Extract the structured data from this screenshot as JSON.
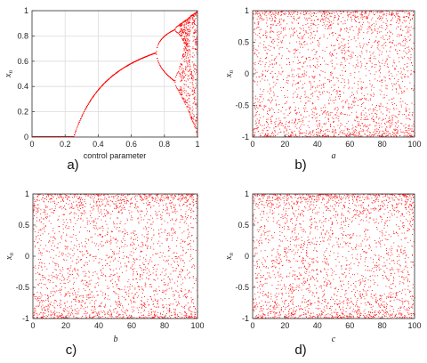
{
  "colors": {
    "points": "#ff0000",
    "axis": "#444444",
    "grid": "#dcdcdc"
  },
  "chart_data": [
    {
      "type": "scatter",
      "panel": "a)",
      "xlabel": "control parameter",
      "ylabel": "x_n",
      "xlim": [
        0,
        1
      ],
      "ylim": [
        0,
        1
      ],
      "xticks": [
        0,
        0.2,
        0.4,
        0.6,
        0.8,
        1
      ],
      "yticks": [
        0,
        0.2,
        0.4,
        0.6,
        0.8,
        1
      ],
      "tick_labels_x": [
        "0",
        "0.2",
        "0.4",
        "0.6",
        "0.8",
        "1"
      ],
      "tick_labels_y": [
        "0",
        "0.2",
        "0.4",
        "0.6",
        "0.8",
        "1"
      ],
      "grid": true,
      "description_points": "bifurcation diagram"
    },
    {
      "type": "scatter",
      "panel": "b)",
      "xlabel": "a",
      "ylabel": "x_n",
      "xlim": [
        0,
        100
      ],
      "ylim": [
        -1,
        1
      ],
      "xticks": [
        0,
        20,
        40,
        60,
        80,
        100
      ],
      "yticks": [
        -1,
        -0.5,
        0,
        0.5,
        1
      ],
      "tick_labels_x": [
        "0",
        "20",
        "40",
        "60",
        "80",
        "100"
      ],
      "tick_labels_y": [
        "-1",
        "-0.5",
        "0",
        "0.5",
        "1"
      ],
      "grid": false
    },
    {
      "type": "scatter",
      "panel": "c)",
      "xlabel": "b",
      "ylabel": "x_n",
      "xlim": [
        0,
        100
      ],
      "ylim": [
        -1,
        1
      ],
      "xticks": [
        0,
        20,
        40,
        60,
        80,
        100
      ],
      "yticks": [
        -1,
        -0.5,
        0,
        0.5,
        1
      ],
      "tick_labels_x": [
        "0",
        "20",
        "40",
        "60",
        "80",
        "100"
      ],
      "tick_labels_y": [
        "-1",
        "-0.5",
        "0",
        "0.5",
        "1"
      ],
      "grid": false
    },
    {
      "type": "scatter",
      "panel": "d)",
      "xlabel": "c",
      "ylabel": "x_n",
      "xlim": [
        0,
        100
      ],
      "ylim": [
        -1,
        1
      ],
      "xticks": [
        0,
        20,
        40,
        60,
        80,
        100
      ],
      "yticks": [
        -1,
        -0.5,
        0,
        0.5,
        1
      ],
      "tick_labels_x": [
        "0",
        "20",
        "40",
        "60",
        "80",
        "100"
      ],
      "tick_labels_y": [
        "-1",
        "-0.5",
        "0",
        "0.5",
        "1"
      ],
      "grid": false
    }
  ]
}
